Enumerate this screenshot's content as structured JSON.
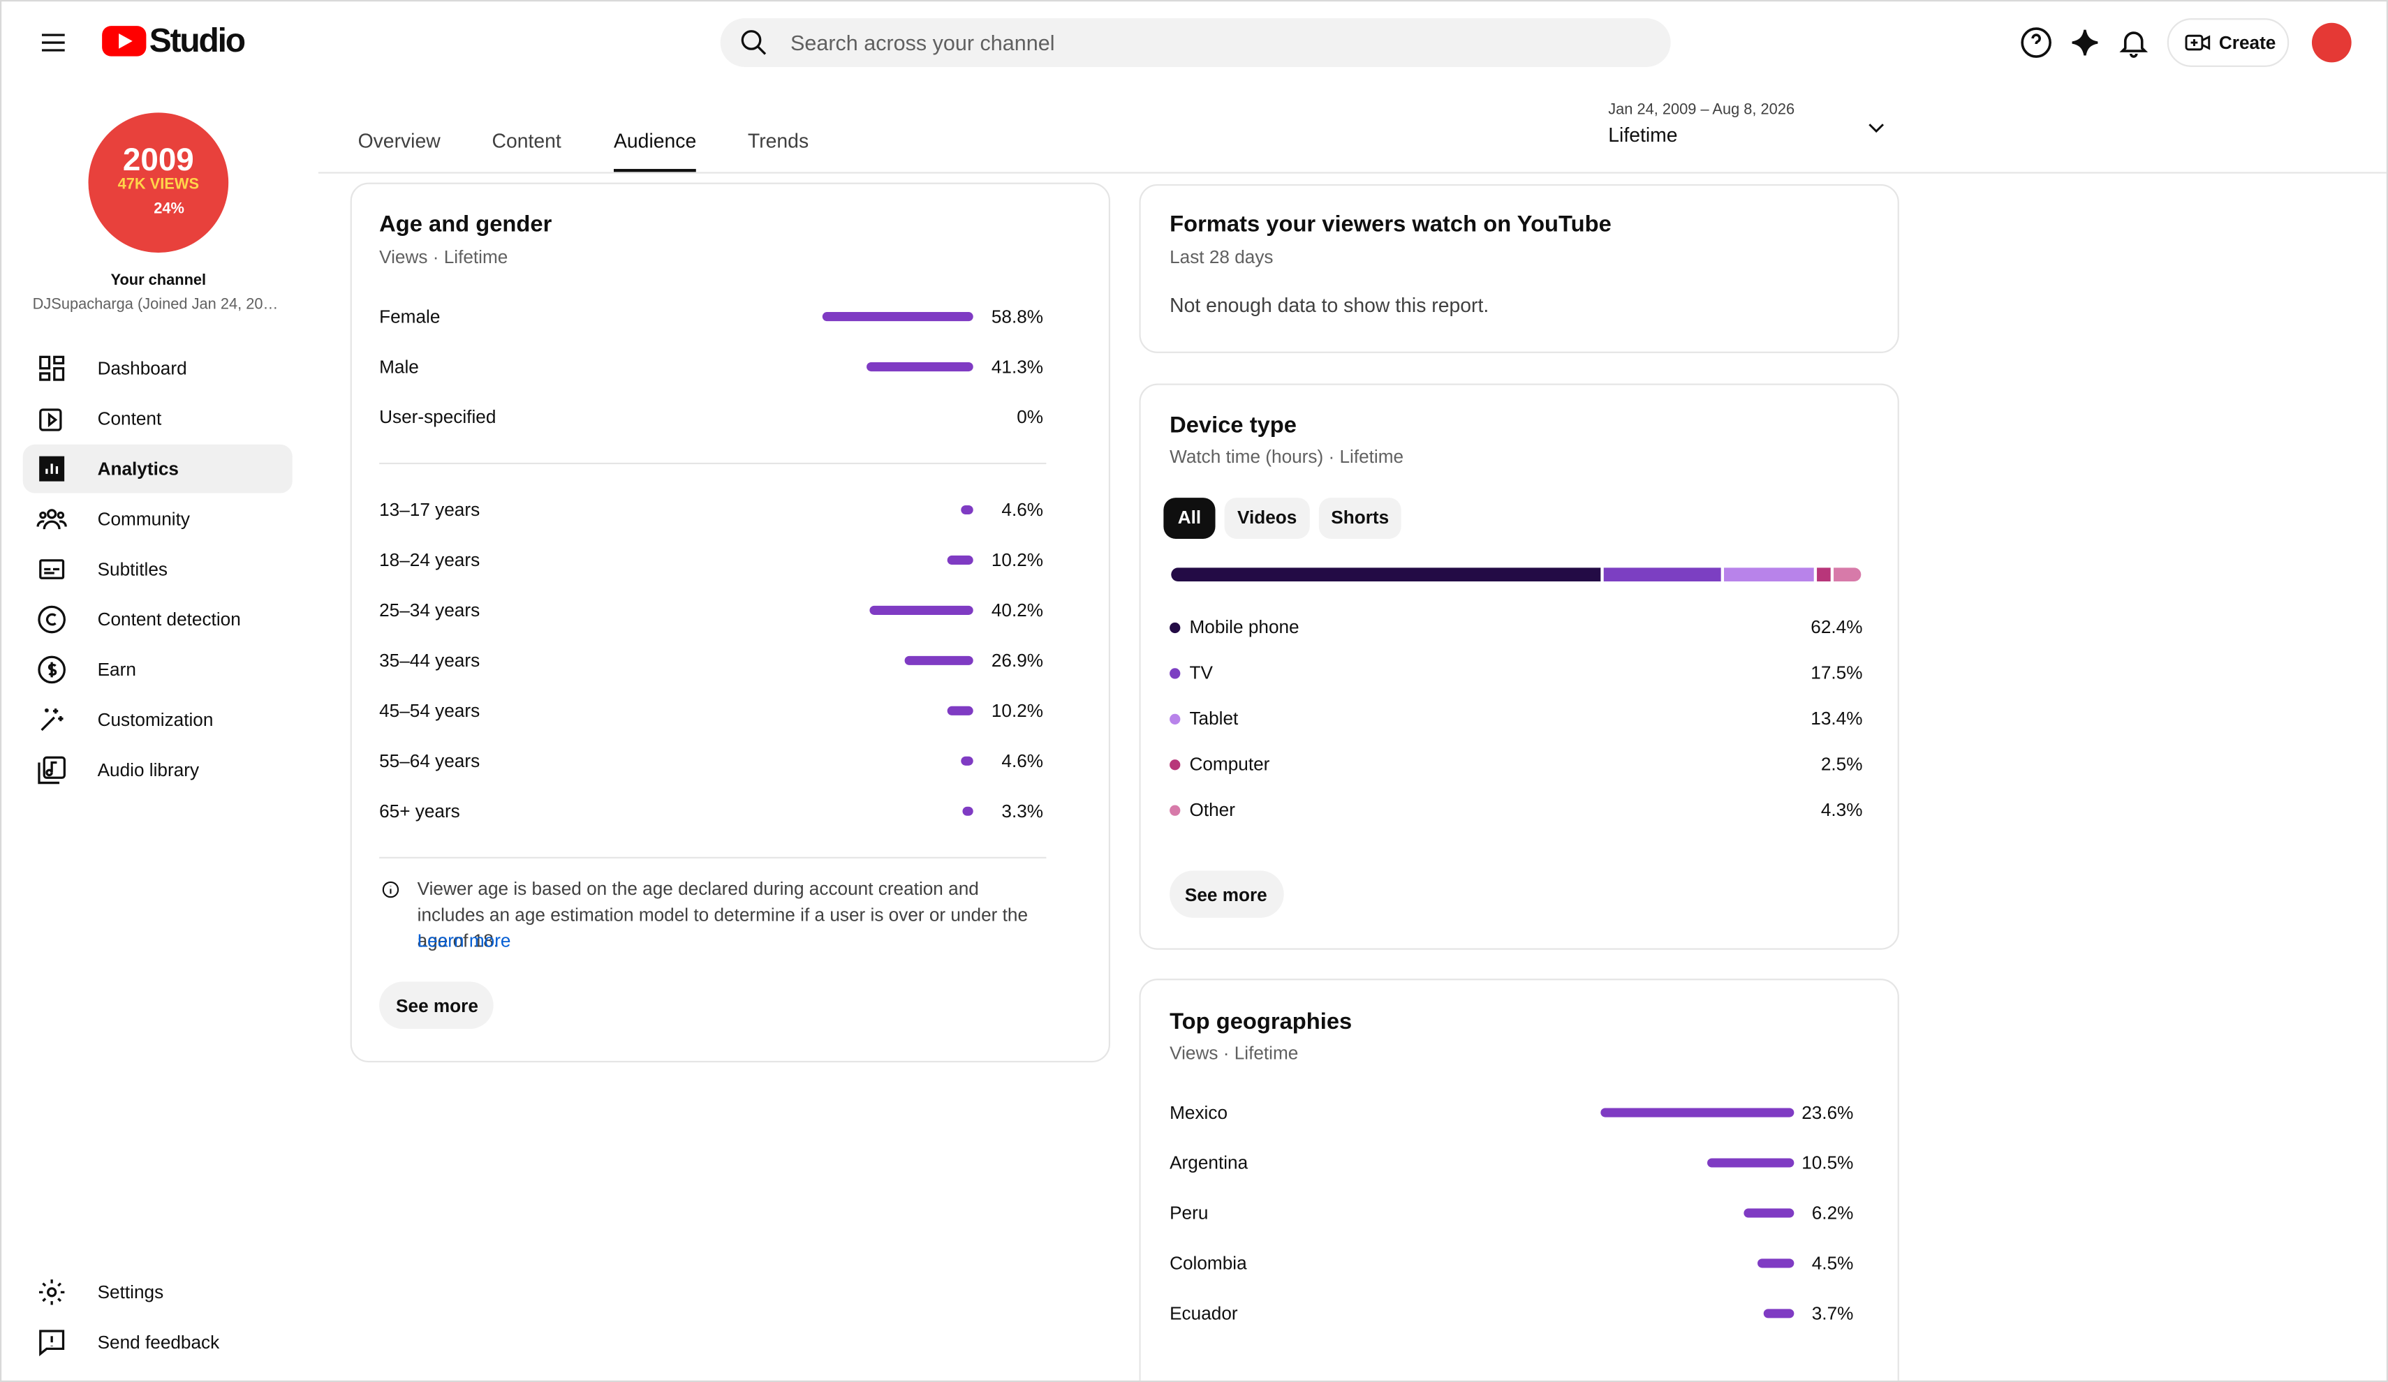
{
  "header": {
    "logo": "Studio",
    "search_placeholder": "Search across your channel",
    "create": "Create"
  },
  "sidebar": {
    "avatar": {
      "year": "2009",
      "views": "47K VIEWS",
      "percent": "24%"
    },
    "channel_label": "Your channel",
    "channel_name": "DJSupacharga (Joined Jan 24, 20…",
    "nav": [
      "Dashboard",
      "Content",
      "Analytics",
      "Community",
      "Subtitles",
      "Content detection",
      "Earn",
      "Customization",
      "Audio library"
    ],
    "bottom": [
      "Settings",
      "Send feedback"
    ]
  },
  "tabs": [
    "Overview",
    "Content",
    "Audience",
    "Trends"
  ],
  "date_range": {
    "range": "Jan 24, 2009 – Aug 8, 2026",
    "label": "Lifetime"
  },
  "age_gender": {
    "title": "Age and gender",
    "subtitle": "Views · Lifetime",
    "gender": [
      {
        "label": "Female",
        "value": 58.8,
        "value_label": "58.8%"
      },
      {
        "label": "Male",
        "value": 41.3,
        "value_label": "41.3%"
      },
      {
        "label": "User-specified",
        "value": 0,
        "value_label": "0%"
      }
    ],
    "age": [
      {
        "label": "13–17 years",
        "value": 4.6,
        "value_label": "4.6%"
      },
      {
        "label": "18–24 years",
        "value": 10.2,
        "value_label": "10.2%"
      },
      {
        "label": "25–34 years",
        "value": 40.2,
        "value_label": "40.2%"
      },
      {
        "label": "35–44 years",
        "value": 26.9,
        "value_label": "26.9%"
      },
      {
        "label": "45–54 years",
        "value": 10.2,
        "value_label": "10.2%"
      },
      {
        "label": "55–64 years",
        "value": 4.6,
        "value_label": "4.6%"
      },
      {
        "label": "65+ years",
        "value": 3.3,
        "value_label": "3.3%"
      }
    ],
    "note": "Viewer age is based on the age declared during account creation and includes an age estimation model to determine if a user is over or under the age of 18.",
    "learn_more": "Learn more",
    "see_more": "See more"
  },
  "formats": {
    "title": "Formats your viewers watch on YouTube",
    "subtitle": "Last 28 days",
    "message": "Not enough data to show this report."
  },
  "device": {
    "title": "Device type",
    "subtitle": "Watch time (hours) · Lifetime",
    "filters": [
      "All",
      "Videos",
      "Shorts"
    ],
    "items": [
      {
        "label": "Mobile phone",
        "value": 62.4,
        "value_label": "62.4%",
        "color": "#230b45"
      },
      {
        "label": "TV",
        "value": 17.5,
        "value_label": "17.5%",
        "color": "#7c3fc2"
      },
      {
        "label": "Tablet",
        "value": 13.4,
        "value_label": "13.4%",
        "color": "#b883ea"
      },
      {
        "label": "Computer",
        "value": 2.5,
        "value_label": "2.5%",
        "color": "#b8367a"
      },
      {
        "label": "Other",
        "value": 4.3,
        "value_label": "4.3%",
        "color": "#d77aa9"
      }
    ],
    "see_more": "See more"
  },
  "geo": {
    "title": "Top geographies",
    "subtitle": "Views · Lifetime",
    "items": [
      {
        "label": "Mexico",
        "value": 23.6,
        "value_label": "23.6%"
      },
      {
        "label": "Argentina",
        "value": 10.5,
        "value_label": "10.5%"
      },
      {
        "label": "Peru",
        "value": 6.2,
        "value_label": "6.2%"
      },
      {
        "label": "Colombia",
        "value": 4.5,
        "value_label": "4.5%"
      },
      {
        "label": "Ecuador",
        "value": 3.7,
        "value_label": "3.7%"
      }
    ]
  }
}
